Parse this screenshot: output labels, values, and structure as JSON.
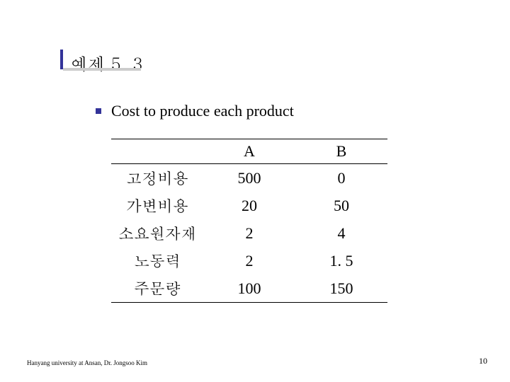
{
  "title": "예제 5. 3",
  "bullet_text": "Cost to produce each product",
  "table": {
    "columns": [
      "",
      "A",
      "B"
    ],
    "rows": [
      [
        "고정비용",
        "500",
        "0"
      ],
      [
        "가변비용",
        "20",
        "50"
      ],
      [
        "소요원자재",
        "2",
        "4"
      ],
      [
        "노동력",
        "2",
        "1. 5"
      ],
      [
        "주문량",
        "100",
        "150"
      ]
    ],
    "border_color": "#000000",
    "font_size": 22
  },
  "footer": "Hanyang university at Ansan, Dr. Jongsoo Kim",
  "page_number": "10",
  "accent_color": "#333399",
  "background_color": "#ffffff"
}
